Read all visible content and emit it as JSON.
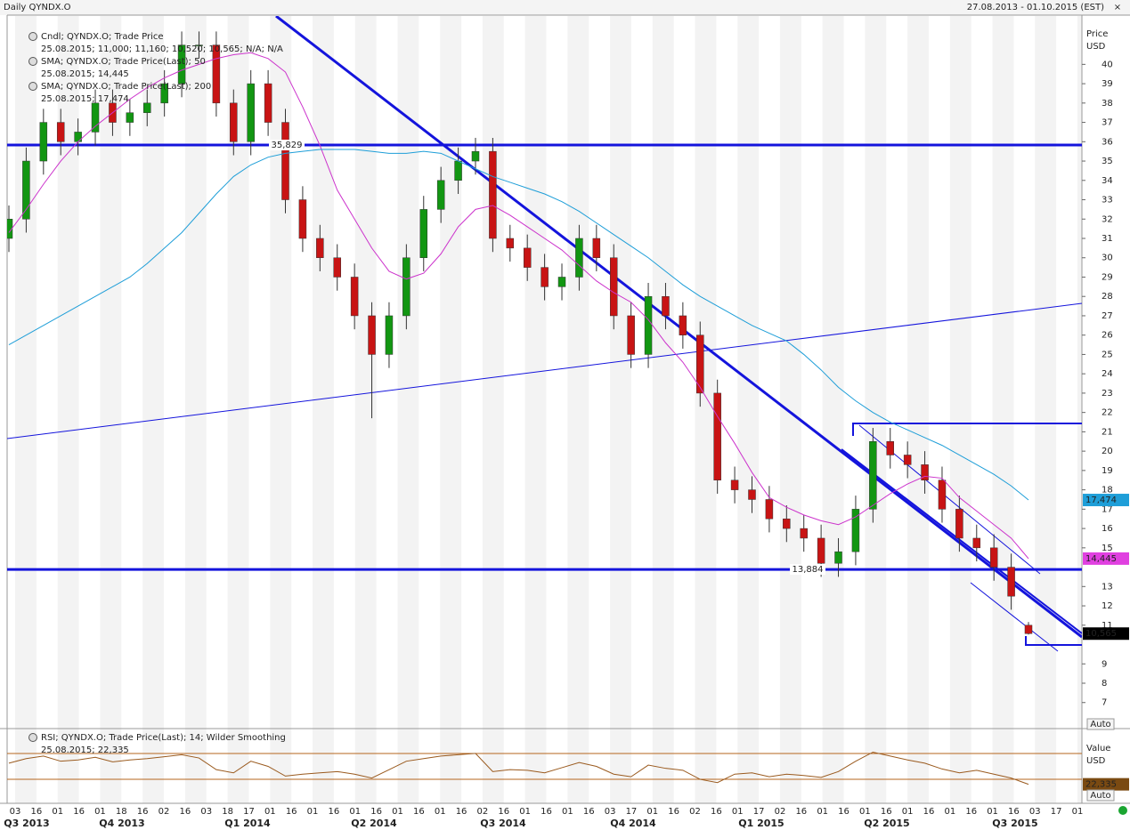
{
  "header": {
    "title": "Daily QYNDX.O",
    "range": "27.08.2013 - 01.10.2015 (EST)"
  },
  "chart_data": {
    "type": "candlestick",
    "series": [
      {
        "name": "Cndl; QYNDX.O; Trade Price",
        "last_label": "25.08.2015; 11,000; 11,160; 10,520; 10,565; N/A; N/A",
        "last_value_label": "10,565",
        "up_color": "#129612",
        "down_color": "#c81414",
        "open": [
          31,
          32,
          35,
          37,
          36,
          36.5,
          38,
          37,
          37.5,
          38,
          39,
          41,
          41,
          38,
          36,
          39,
          37,
          33,
          31,
          30,
          29,
          27,
          25,
          27,
          30,
          32.5,
          34,
          35,
          35.5,
          31,
          30.5,
          29.5,
          28.5,
          29,
          31,
          30,
          27,
          25,
          28,
          27,
          26,
          23,
          18.5,
          18,
          17.5,
          16.5,
          16,
          15.5,
          14.2,
          14.8,
          17,
          20.5,
          19.8,
          19.3,
          18.5,
          17,
          15.5,
          15,
          14,
          11
        ],
        "high": [
          32.7,
          35.7,
          37.7,
          37.7,
          37.2,
          38.7,
          38.7,
          38.2,
          38.7,
          39.7,
          41.7,
          41.7,
          41.7,
          38.7,
          39.7,
          39.7,
          37.7,
          33.7,
          31.7,
          30.7,
          29.7,
          27.7,
          27.7,
          30.7,
          33.2,
          34.7,
          35.7,
          36.2,
          36.2,
          31.7,
          31.2,
          30.2,
          29.7,
          31.7,
          31.7,
          30.7,
          27.7,
          28.7,
          28.7,
          27.7,
          26.7,
          23.7,
          19.2,
          18.7,
          18.2,
          17.2,
          16.7,
          16.2,
          15.5,
          17.7,
          21.2,
          21.2,
          20.5,
          20,
          19.2,
          17.7,
          16.2,
          15.7,
          14.7,
          11.16
        ],
        "low": [
          30.3,
          31.3,
          34.3,
          35.3,
          35.3,
          35.8,
          36.3,
          36.3,
          36.8,
          37.3,
          38.3,
          40.3,
          37.3,
          35.3,
          35.3,
          36.3,
          32.3,
          30.3,
          29.3,
          28.3,
          26.3,
          21.7,
          24.3,
          26.3,
          29.3,
          31.8,
          33.3,
          34.3,
          30.3,
          29.8,
          28.8,
          27.8,
          27.8,
          28.3,
          29.3,
          26.3,
          24.3,
          24.3,
          26.3,
          25.3,
          22.3,
          17.8,
          17.3,
          16.8,
          15.8,
          15.3,
          14.8,
          13.5,
          13.5,
          14.1,
          16.3,
          19.1,
          18.6,
          17.8,
          16.3,
          14.8,
          14.3,
          13.3,
          11.8,
          10.52
        ],
        "close": [
          32,
          35,
          37,
          36,
          36.5,
          38,
          37,
          37.5,
          38,
          39,
          41,
          41,
          38,
          36,
          39,
          37,
          33,
          31,
          30,
          29,
          27,
          25,
          27,
          30,
          32.5,
          34,
          35,
          35.5,
          31,
          30.5,
          29.5,
          28.5,
          29,
          31,
          30,
          27,
          25,
          28,
          27,
          26,
          23,
          18.5,
          18,
          17.5,
          16.5,
          16,
          15.5,
          14.2,
          14.8,
          17,
          20.5,
          19.8,
          19.3,
          18.5,
          17,
          15.5,
          15,
          14,
          12.5,
          10.565
        ]
      },
      {
        "name": "SMA; QYNDX.O; Trade Price(Last); 50",
        "last_label": "25.08.2015; 14,445",
        "last_value_label": "14,445",
        "color": "#cc33cc",
        "values": [
          31.3,
          32.5,
          33.8,
          35,
          36,
          36.8,
          37.5,
          38.2,
          38.8,
          39.3,
          39.7,
          40,
          40.3,
          40.5,
          40.6,
          40.3,
          39.6,
          37.8,
          35.8,
          33.5,
          32,
          30.5,
          29.3,
          28.9,
          29.2,
          30.2,
          31.6,
          32.5,
          32.7,
          32.2,
          31.6,
          31,
          30.4,
          29.6,
          28.8,
          28.2,
          27.7,
          26.8,
          25.6,
          24.6,
          23.3,
          21.8,
          20.4,
          18.9,
          17.6,
          17.1,
          16.7,
          16.4,
          16.2,
          16.6,
          17.2,
          17.8,
          18.3,
          18.7,
          18.6,
          17.6,
          16.9,
          16.2,
          15.5,
          14.445
        ]
      },
      {
        "name": "SMA; QYNDX.O; Trade Price(Last); 200",
        "last_label": "25.08.2015; 17,474",
        "last_value_label": "17,474",
        "color": "#1e9ed8",
        "values": [
          25.5,
          26,
          26.5,
          27,
          27.5,
          28,
          28.5,
          29,
          29.7,
          30.5,
          31.3,
          32.3,
          33.3,
          34.2,
          34.8,
          35.2,
          35.4,
          35.5,
          35.6,
          35.6,
          35.6,
          35.5,
          35.4,
          35.4,
          35.5,
          35.4,
          35,
          34.6,
          34.2,
          33.9,
          33.6,
          33.3,
          32.9,
          32.4,
          31.8,
          31.2,
          30.6,
          30,
          29.3,
          28.6,
          28,
          27.5,
          27,
          26.5,
          26.1,
          25.7,
          25,
          24.2,
          23.3,
          22.6,
          22,
          21.5,
          21.1,
          20.7,
          20.3,
          19.8,
          19.3,
          18.8,
          18.2,
          17.474
        ]
      }
    ],
    "axis_label": [
      "Price",
      "USD"
    ],
    "auto": "Auto",
    "ylim": [
      5.7,
      42.5
    ],
    "yticks": [
      7,
      8,
      9,
      11,
      12,
      13,
      15,
      16,
      17,
      18,
      19,
      20,
      21,
      22,
      23,
      24,
      25,
      26,
      27,
      28,
      29,
      30,
      31,
      32,
      33,
      34,
      35,
      36,
      37,
      38,
      39,
      40
    ],
    "levels": [
      {
        "value": 35.829,
        "label": "35,829"
      },
      {
        "value": 13.884,
        "label": "13,884"
      }
    ],
    "xticks": [
      "03",
      "16",
      "01",
      "16",
      "01",
      "18",
      "16",
      "02",
      "16",
      "03",
      "18",
      "17",
      "01",
      "16",
      "01",
      "16",
      "01",
      "16",
      "01",
      "16",
      "01",
      "16",
      "02",
      "16",
      "01",
      "16",
      "01",
      "16",
      "03",
      "17",
      "01",
      "16",
      "02",
      "16",
      "01",
      "17",
      "02",
      "16",
      "01",
      "16",
      "01",
      "16",
      "01",
      "16",
      "01",
      "16",
      "01",
      "16",
      "03",
      "17",
      "01"
    ],
    "quarters": [
      "Q3 2013",
      "Q4 2013",
      "Q1 2014",
      "Q2 2014",
      "Q3 2014",
      "Q4 2014",
      "Q1 2015",
      "Q2 2015",
      "Q3 2015"
    ],
    "rsi": {
      "type": "line",
      "name": "RSI; QYNDX.O; Trade Price(Last); 14; Wilder Smoothing",
      "last_label": "25.08.2015; 22,335",
      "last_value_label": "22,335",
      "color": "#9a5a1e",
      "level_color": "#b5651d",
      "values": [
        55,
        62,
        66,
        58,
        60,
        64,
        57,
        60,
        62,
        65,
        68,
        63,
        45,
        40,
        58,
        50,
        35,
        38,
        40,
        42,
        38,
        32,
        45,
        58,
        62,
        66,
        68,
        70,
        42,
        45,
        44,
        40,
        48,
        56,
        50,
        38,
        34,
        52,
        47,
        44,
        30,
        25,
        38,
        40,
        34,
        38,
        36,
        33,
        42,
        58,
        72,
        66,
        60,
        55,
        46,
        40,
        44,
        38,
        32,
        22.335
      ],
      "ylim": [
        -7,
        107
      ],
      "levels": [
        70,
        30
      ],
      "axis_label": [
        "Value",
        "USD"
      ],
      "auto": "Auto"
    }
  }
}
